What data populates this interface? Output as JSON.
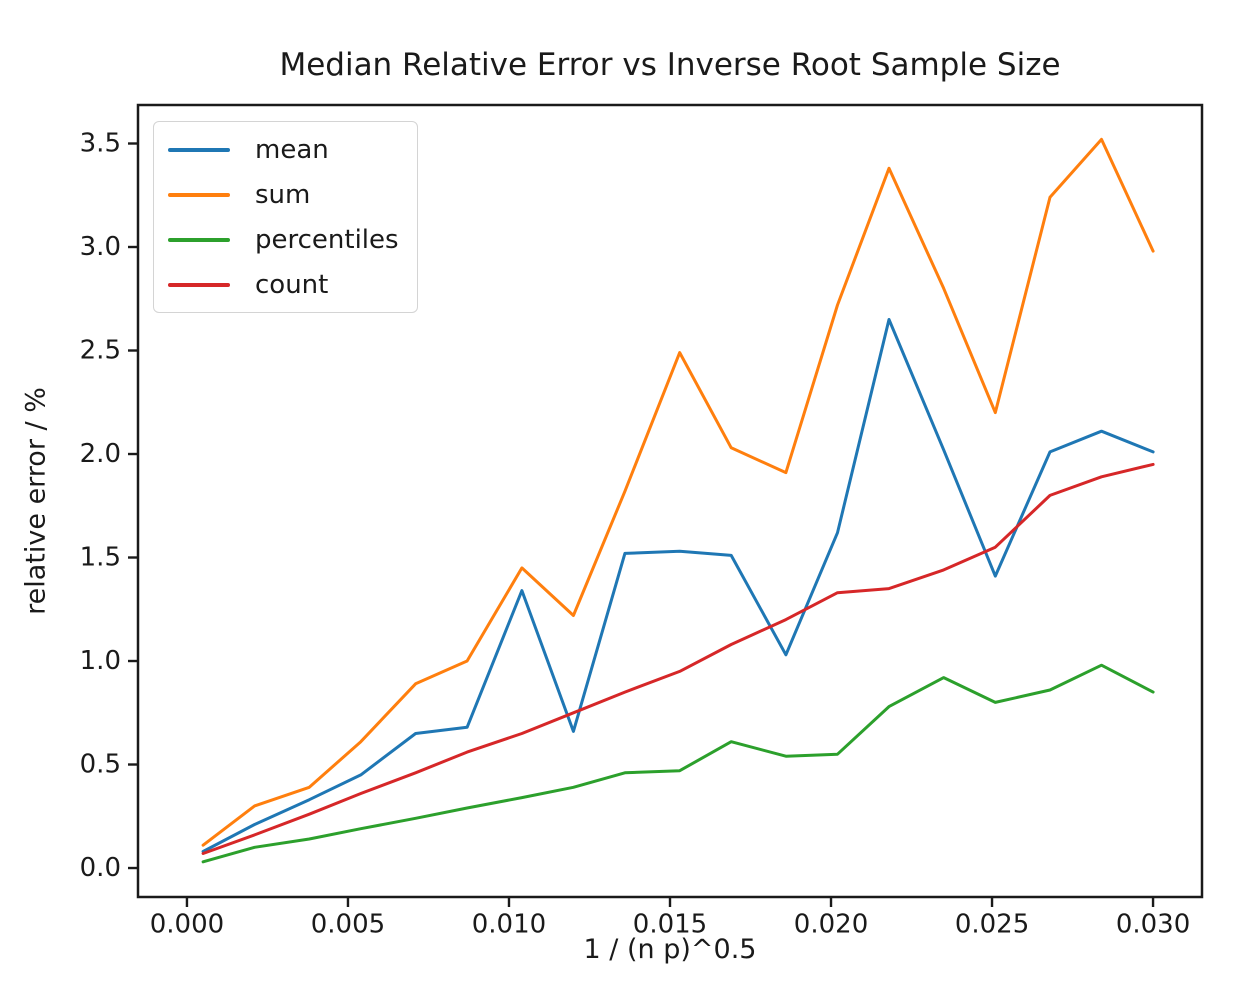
{
  "chart_data": {
    "type": "line",
    "title": "Median Relative Error vs Inverse Root Sample Size",
    "xlabel": "1 / (n p)^0.5",
    "ylabel": "relative error / %",
    "grid": false,
    "legend_position": "upper-left",
    "xlim": [
      -0.00152,
      0.03152
    ],
    "ylim": [
      -0.14,
      3.686
    ],
    "xticks": {
      "values": [
        0.0,
        0.005,
        0.01,
        0.015,
        0.02,
        0.025,
        0.03
      ],
      "labels": [
        "0.000",
        "0.005",
        "0.010",
        "0.015",
        "0.020",
        "0.025",
        "0.030"
      ]
    },
    "yticks": {
      "values": [
        0.0,
        0.5,
        1.0,
        1.5,
        2.0,
        2.5,
        3.0,
        3.5
      ],
      "labels": [
        "0.0",
        "0.5",
        "1.0",
        "1.5",
        "2.0",
        "2.5",
        "3.0",
        "3.5"
      ]
    },
    "x": [
      0.0005,
      0.0021,
      0.0038,
      0.0054,
      0.0071,
      0.0087,
      0.0104,
      0.012,
      0.0136,
      0.0153,
      0.0169,
      0.0186,
      0.0202,
      0.0218,
      0.0235,
      0.0251,
      0.0268,
      0.0284,
      0.03
    ],
    "series": [
      {
        "name": "mean",
        "color": "#1f77b4",
        "values": [
          0.08,
          0.21,
          0.33,
          0.45,
          0.65,
          0.68,
          1.34,
          0.66,
          1.52,
          1.53,
          1.51,
          1.03,
          1.62,
          2.65,
          2.02,
          1.41,
          2.01,
          2.11,
          2.01
        ]
      },
      {
        "name": "sum",
        "color": "#ff7f0e",
        "values": [
          0.11,
          0.3,
          0.39,
          0.61,
          0.89,
          1.0,
          1.45,
          1.22,
          1.82,
          2.49,
          2.03,
          1.91,
          2.72,
          3.38,
          2.8,
          2.2,
          3.24,
          3.52,
          2.98
        ]
      },
      {
        "name": "percentiles",
        "color": "#2ca02c",
        "values": [
          0.03,
          0.1,
          0.14,
          0.19,
          0.24,
          0.29,
          0.34,
          0.39,
          0.46,
          0.47,
          0.61,
          0.54,
          0.55,
          0.78,
          0.92,
          0.8,
          0.86,
          0.98,
          0.85
        ]
      },
      {
        "name": "count",
        "color": "#d62728",
        "values": [
          0.07,
          0.16,
          0.26,
          0.36,
          0.46,
          0.56,
          0.65,
          0.75,
          0.85,
          0.95,
          1.08,
          1.2,
          1.33,
          1.35,
          1.44,
          1.55,
          1.8,
          1.89,
          1.95
        ]
      }
    ]
  },
  "style": {
    "spine_color": "#1a1a1a",
    "text_color": "#1a1a1a",
    "background": "#ffffff",
    "legend_border": "#d4d4d4"
  }
}
